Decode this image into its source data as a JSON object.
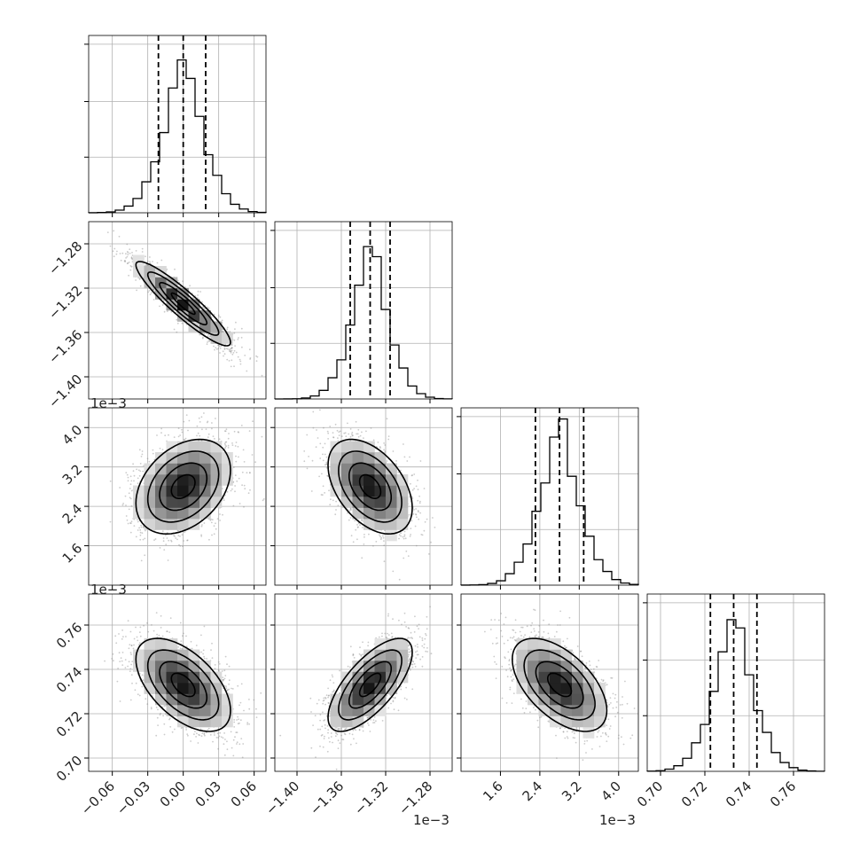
{
  "chart_data": {
    "type": "corner",
    "parameters": [
      {
        "mean": 0.0,
        "std": 0.02,
        "range": [
          -0.08,
          0.07
        ],
        "ticks": [
          -0.06,
          -0.03,
          0.0,
          0.03,
          0.06
        ],
        "tick_labels": [
          "−0.06",
          "−0.03",
          "0.00",
          "0.03",
          "0.06"
        ],
        "quantiles": [
          -0.021,
          0.0,
          0.019
        ],
        "offset": ""
      },
      {
        "mean": -1.334,
        "std": 0.019,
        "range": [
          -1.42,
          -1.26
        ],
        "ticks": [
          -1.4,
          -1.36,
          -1.32,
          -1.28
        ],
        "tick_labels": [
          "−1.40",
          "−1.36",
          "−1.32",
          "−1.28"
        ],
        "quantiles": [
          -1.352,
          -1.334,
          -1.316
        ],
        "offset": "1e−3"
      },
      {
        "mean": 2.8,
        "std": 0.48,
        "range": [
          0.8,
          4.4
        ],
        "ticks": [
          1.6,
          2.4,
          3.2,
          4.0
        ],
        "tick_labels": [
          "1.6",
          "2.4",
          "3.2",
          "4.0"
        ],
        "quantiles": [
          2.31,
          2.8,
          3.29
        ],
        "offset": "1e−3"
      },
      {
        "mean": 0.733,
        "std": 0.0105,
        "range": [
          0.694,
          0.774
        ],
        "ticks": [
          0.7,
          0.72,
          0.74,
          0.76
        ],
        "tick_labels": [
          "0.70",
          "0.72",
          "0.74",
          "0.76"
        ],
        "quantiles": [
          0.7225,
          0.733,
          0.7435
        ],
        "offset": ""
      }
    ],
    "correlations": [
      [
        1.0,
        -0.92,
        0.35,
        -0.55
      ],
      [
        -0.92,
        1.0,
        -0.45,
        0.7
      ],
      [
        0.35,
        -0.45,
        1.0,
        -0.55
      ],
      [
        -0.55,
        0.7,
        -0.55,
        1.0
      ]
    ],
    "hist_bins": 20,
    "contour_levels": [
      0.5,
      1.0,
      1.5,
      2.0
    ],
    "grid": true,
    "colors": {
      "line": "#000000",
      "points": "#8c8c8c",
      "grid": "#b0b0b0"
    }
  }
}
